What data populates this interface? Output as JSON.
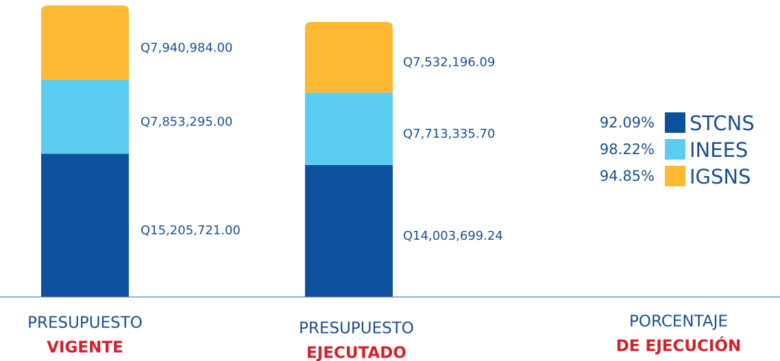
{
  "chart_data": {
    "type": "stacked_bar",
    "categories": [
      [
        "PRESUPUESTO",
        "VIGENTE"
      ],
      [
        "PRESUPUESTO",
        "EJECUTADO"
      ]
    ],
    "ylim": [
      0,
      31000000
    ],
    "series": [
      {
        "name": "STCNS",
        "color": "#0d519e",
        "values": [
          15205721.0,
          14003699.24
        ],
        "value_labels": [
          "Q15,205,721.00",
          "Q14,003,699.24"
        ]
      },
      {
        "name": "INEES",
        "color": "#5bcdf0",
        "values": [
          7853295.0,
          7713335.7
        ],
        "value_labels": [
          "Q7,853,295.00",
          "Q7,713,335.70"
        ]
      },
      {
        "name": "IGSNS",
        "color": "#fdb933",
        "values": [
          7940984.0,
          7532196.09
        ],
        "value_labels": [
          "Q7,940,984.00",
          "Q7,532,196.09"
        ]
      }
    ],
    "legend_title": [
      "PORCENTAJE",
      "DE EJECUCIÓN"
    ],
    "percentages": {
      "values": [
        92.09,
        98.22,
        94.85
      ],
      "value_labels": [
        "92.09%",
        "98.22%",
        "94.85%"
      ]
    }
  }
}
